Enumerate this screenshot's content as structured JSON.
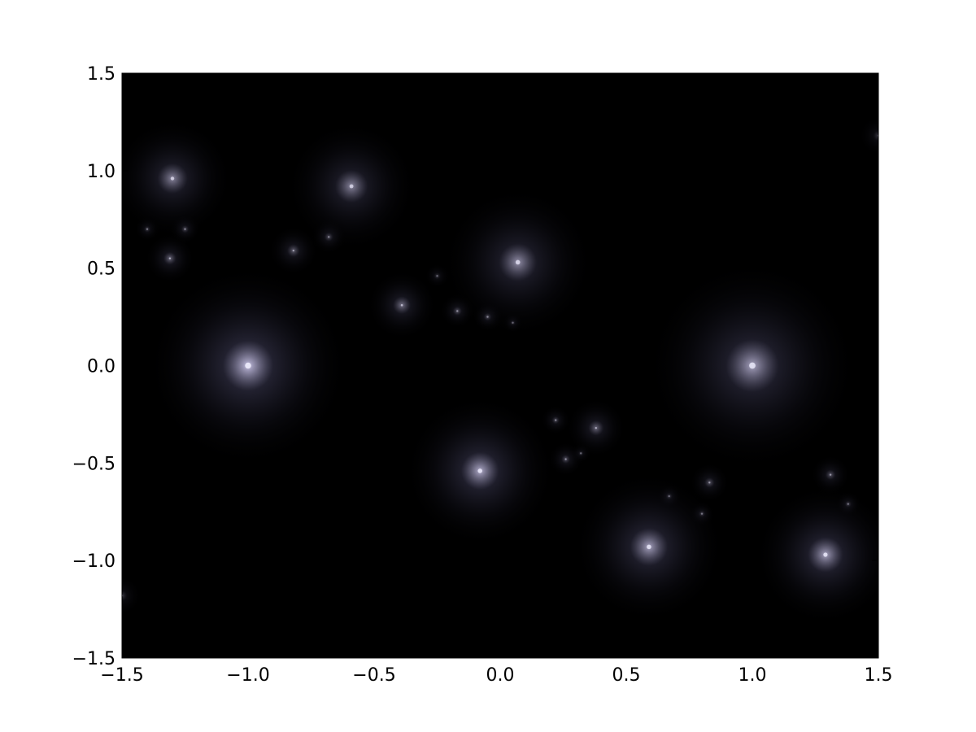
{
  "chart_data": {
    "type": "heatmap",
    "title": "",
    "xlabel": "",
    "ylabel": "",
    "xlim": [
      -1.5,
      1.5
    ],
    "ylim": [
      -1.5,
      1.5
    ],
    "grid": false,
    "x_ticks": [
      {
        "value": -1.5,
        "label": "−1.5"
      },
      {
        "value": -1.0,
        "label": "−1.0"
      },
      {
        "value": -0.5,
        "label": "−0.5"
      },
      {
        "value": 0.0,
        "label": "0.0"
      },
      {
        "value": 0.5,
        "label": "0.5"
      },
      {
        "value": 1.0,
        "label": "1.0"
      },
      {
        "value": 1.5,
        "label": "1.5"
      }
    ],
    "y_ticks": [
      {
        "value": 1.5,
        "label": "1.5"
      },
      {
        "value": 1.0,
        "label": "1.0"
      },
      {
        "value": 0.5,
        "label": "0.5"
      },
      {
        "value": 0.0,
        "label": "0.0"
      },
      {
        "value": -0.5,
        "label": "−0.5"
      },
      {
        "value": -1.0,
        "label": "−1.0"
      },
      {
        "value": -1.5,
        "label": "−1.5"
      }
    ],
    "colormap": {
      "low": "#000000",
      "high": "#d8d4f0"
    },
    "glow_points": [
      {
        "x": -1.0,
        "y": 0.0,
        "intensity": 1.0,
        "spread": 0.4
      },
      {
        "x": 1.0,
        "y": 0.0,
        "intensity": 0.85,
        "spread": 0.42
      },
      {
        "x": -0.08,
        "y": -0.54,
        "intensity": 0.9,
        "spread": 0.3
      },
      {
        "x": 0.59,
        "y": -0.93,
        "intensity": 0.85,
        "spread": 0.3
      },
      {
        "x": 1.29,
        "y": -0.97,
        "intensity": 0.85,
        "spread": 0.28
      },
      {
        "x": 0.07,
        "y": 0.53,
        "intensity": 0.75,
        "spread": 0.3
      },
      {
        "x": -0.59,
        "y": 0.92,
        "intensity": 0.7,
        "spread": 0.26
      },
      {
        "x": -1.3,
        "y": 0.96,
        "intensity": 0.7,
        "spread": 0.24
      },
      {
        "x": -0.39,
        "y": 0.31,
        "intensity": 0.6,
        "spread": 0.14
      },
      {
        "x": 0.38,
        "y": -0.32,
        "intensity": 0.55,
        "spread": 0.12
      },
      {
        "x": -1.31,
        "y": 0.55,
        "intensity": 0.55,
        "spread": 0.1
      },
      {
        "x": -0.82,
        "y": 0.59,
        "intensity": 0.5,
        "spread": 0.1
      },
      {
        "x": 1.31,
        "y": -0.56,
        "intensity": 0.45,
        "spread": 0.08
      },
      {
        "x": 0.83,
        "y": -0.6,
        "intensity": 0.45,
        "spread": 0.08
      },
      {
        "x": -0.17,
        "y": 0.28,
        "intensity": 0.45,
        "spread": 0.07
      },
      {
        "x": 0.26,
        "y": -0.48,
        "intensity": 0.45,
        "spread": 0.07
      },
      {
        "x": -0.05,
        "y": 0.25,
        "intensity": 0.4,
        "spread": 0.06
      },
      {
        "x": 0.22,
        "y": -0.28,
        "intensity": 0.4,
        "spread": 0.06
      },
      {
        "x": -0.68,
        "y": 0.66,
        "intensity": 0.4,
        "spread": 0.07
      },
      {
        "x": -1.25,
        "y": 0.7,
        "intensity": 0.4,
        "spread": 0.06
      },
      {
        "x": -1.4,
        "y": 0.7,
        "intensity": 0.35,
        "spread": 0.05
      },
      {
        "x": 1.38,
        "y": -0.71,
        "intensity": 0.35,
        "spread": 0.05
      },
      {
        "x": 0.8,
        "y": -0.76,
        "intensity": 0.35,
        "spread": 0.05
      },
      {
        "x": 0.67,
        "y": -0.67,
        "intensity": 0.3,
        "spread": 0.05
      },
      {
        "x": -0.25,
        "y": 0.46,
        "intensity": 0.3,
        "spread": 0.05
      },
      {
        "x": 0.05,
        "y": 0.22,
        "intensity": 0.3,
        "spread": 0.04
      },
      {
        "x": 0.32,
        "y": -0.45,
        "intensity": 0.3,
        "spread": 0.04
      },
      {
        "x": 1.5,
        "y": 1.18,
        "intensity": 0.3,
        "spread": 0.08
      },
      {
        "x": -1.5,
        "y": -1.18,
        "intensity": 0.3,
        "spread": 0.08
      }
    ]
  }
}
